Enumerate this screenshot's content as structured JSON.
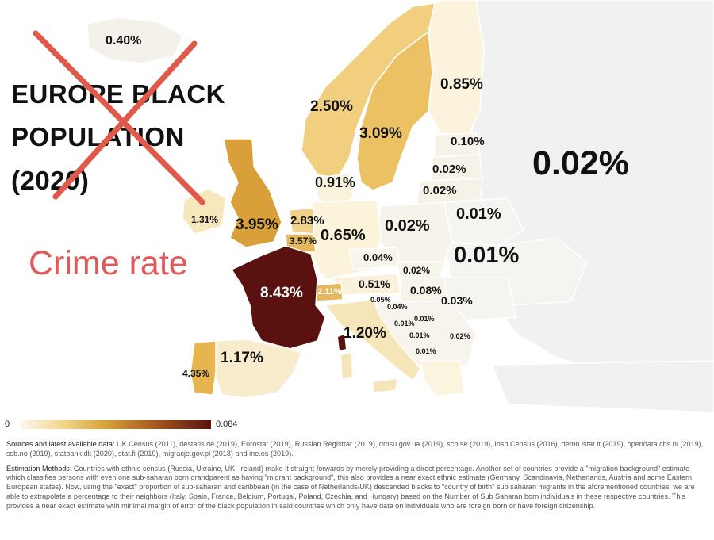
{
  "title_lines": [
    "EUROPE BLACK",
    "POPULATION",
    "(2020)"
  ],
  "overlay_text": "Crime rate",
  "colors": {
    "cross": "#e05a4a",
    "crime_text": "#e05a5a",
    "sea": "#ffffff",
    "unshaded_land": "#f1f1f1",
    "scale_low": "#fbf7ea",
    "scale_high": "#5a1210"
  },
  "legend": {
    "min": "0",
    "max": "0.084"
  },
  "labels": {
    "iceland": "0.40%",
    "norway": "2.50%",
    "sweden": "3.09%",
    "finland": "0.85%",
    "estonia": "0.10%",
    "latvia": "0.02%",
    "lithuania": "0.02%",
    "russia": "0.02%",
    "belarus": "0.01%",
    "ukraine": "0.01%",
    "denmark": "0.91%",
    "ireland": "1.31%",
    "uk": "3.95%",
    "netherlands": "2.83%",
    "belgium": "3.57%",
    "germany": "0.65%",
    "poland": "0.02%",
    "czechia": "0.04%",
    "slovakia": "0.02%",
    "france": "8.43%",
    "switzerland": "2.11%",
    "austria": "0.51%",
    "hungary": "0.08%",
    "romania": "0.03%",
    "slovenia": "0.05%",
    "croatia": "0.04%",
    "bosnia": "0.01%",
    "serbia": "0.01%",
    "montenegro": "0.01%",
    "bulgaria": "0.02%",
    "macedonia": "0.01%",
    "italy": "1.20%",
    "spain": "1.17%",
    "portugal": "4.35%"
  },
  "notes": {
    "sources_head": "Sources and latest available data:",
    "sources_body": " UK Census (2011), destatis.de (2019), Eurostat (2019), Russian Registrar (2019), dmsu.gov.ua (2019), scb.se (2019), Irish Census (2016), demo.istat.it (2019), opendata.cbs.nl (2019), ssb.no (2019), statbank.dk (2020), stat.fi (2019), migracje.gov.pl (2018) and ine.es (2019).",
    "methods_head": "Estimation Methods:",
    "methods_body": " Countries with ethnic census (Russia, Ukraine, UK, Ireland) make it straight forwards by merely providing a direct percentage. Another set of countries provide a \"migration background\" estimate which classifies persons with even one sub-saharan born grandparent as having \"migrant background\", this also provides a near exact ethnic estimate (Germany, Scandinavia, Netherlands, Austria and some Eastern European states). Now, using the \"exact\" proportion of sub-saharan and caribbean (in the case of Netherlands/UK) descended blacks to \"country of birth\" sub saharan migrants in the aforementioned countries, we are able to extrapolate a percentage to their neighbors (Italy, Spain, France, Belgium, Portugal, Poland, Czechia, and Hungary) based on the Number of Sub Saharan born individuals in these respective countries. This provides a near exact estimate  wtih minimal margin of error of the black population in said countries which only have data on individuals who are foreign born or have foreign citizenship."
  }
}
